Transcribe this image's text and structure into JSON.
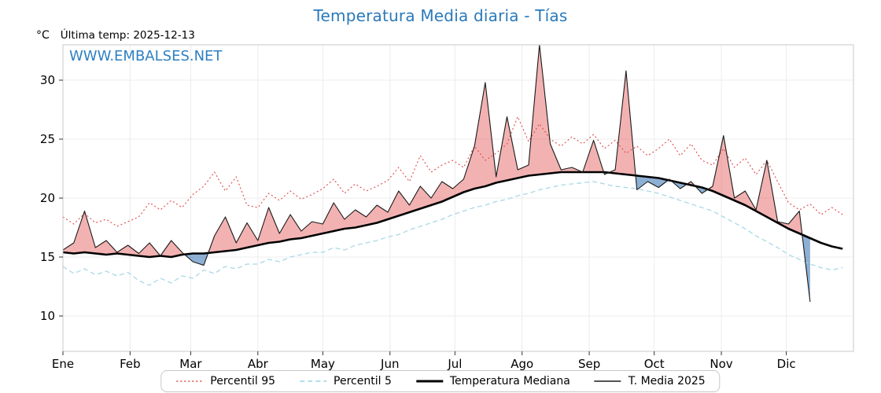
{
  "header": {
    "title": "Temperatura Media diaria - Tías",
    "unit_label": "°C",
    "last_temp_label": "Última temp: 2025-12-13",
    "watermark": "WWW.EMBALSES.NET"
  },
  "colors": {
    "title": "#2a79ba",
    "watermark": "#2e80c3",
    "axis_text": "#000000",
    "grid": "#ececec",
    "plot_border": "#c8c8c8",
    "fill_above_median": "rgba(229,85,85,0.45)",
    "fill_below_median": "rgba(93,143,194,0.70)"
  },
  "chart_data": {
    "type": "line",
    "title": "Temperatura Media diaria - Tías",
    "xlabel": "",
    "ylabel": "°C",
    "legend_position": "bottom",
    "grid": true,
    "xlim": [
      0,
      365
    ],
    "ylim": [
      7,
      33
    ],
    "yticks": [
      10,
      15,
      20,
      25,
      30
    ],
    "month_labels": [
      "Ene",
      "Feb",
      "Mar",
      "Abr",
      "May",
      "Jun",
      "Jul",
      "Ago",
      "Sep",
      "Oct",
      "Nov",
      "Dic"
    ],
    "month_start_days": [
      0,
      31,
      59,
      90,
      120,
      151,
      181,
      212,
      243,
      273,
      304,
      334
    ],
    "days": [
      0,
      5,
      10,
      15,
      20,
      25,
      30,
      35,
      40,
      45,
      50,
      55,
      60,
      65,
      70,
      75,
      80,
      85,
      90,
      95,
      100,
      105,
      110,
      115,
      120,
      125,
      130,
      135,
      140,
      145,
      150,
      155,
      160,
      165,
      170,
      175,
      180,
      185,
      190,
      195,
      200,
      205,
      210,
      215,
      220,
      225,
      230,
      235,
      240,
      245,
      250,
      255,
      260,
      265,
      270,
      275,
      280,
      285,
      290,
      295,
      300,
      305,
      310,
      315,
      320,
      325,
      330,
      335,
      340,
      345,
      350,
      355,
      360
    ],
    "series": [
      {
        "name": "Percentil 95",
        "color": "#e04848",
        "style": "dotted",
        "width": 1.1,
        "values": [
          18.4,
          17.8,
          18.7,
          17.9,
          18.2,
          17.6,
          18.0,
          18.4,
          19.6,
          19.0,
          19.8,
          19.2,
          20.3,
          21.0,
          22.2,
          20.6,
          21.8,
          19.4,
          19.2,
          20.4,
          19.8,
          20.6,
          19.9,
          20.3,
          20.8,
          21.6,
          20.4,
          21.2,
          20.6,
          21.0,
          21.5,
          22.6,
          21.4,
          23.6,
          22.2,
          22.8,
          23.2,
          22.6,
          24.4,
          23.2,
          23.8,
          24.6,
          26.9,
          24.8,
          26.3,
          25.0,
          24.4,
          25.2,
          24.6,
          25.4,
          24.2,
          24.9,
          23.8,
          24.4,
          23.6,
          24.2,
          25.0,
          23.6,
          24.6,
          23.2,
          22.8,
          24.2,
          22.6,
          23.4,
          22.0,
          23.2,
          21.4,
          19.6,
          19.0,
          19.5,
          18.6,
          19.2,
          18.6
        ]
      },
      {
        "name": "Percentil 5",
        "color": "#aad8e7",
        "style": "dashed",
        "width": 1.3,
        "values": [
          14.2,
          13.6,
          14.0,
          13.5,
          13.8,
          13.4,
          13.7,
          13.0,
          12.6,
          13.2,
          12.8,
          13.4,
          13.2,
          13.9,
          13.6,
          14.2,
          14.0,
          14.4,
          14.4,
          14.8,
          14.6,
          15.0,
          15.2,
          15.4,
          15.4,
          15.8,
          15.6,
          16.0,
          16.2,
          16.4,
          16.7,
          16.9,
          17.3,
          17.6,
          17.9,
          18.2,
          18.6,
          18.9,
          19.2,
          19.4,
          19.7,
          19.9,
          20.2,
          20.4,
          20.7,
          20.9,
          21.1,
          21.2,
          21.3,
          21.4,
          21.2,
          21.0,
          20.9,
          20.8,
          20.6,
          20.4,
          20.1,
          19.8,
          19.5,
          19.2,
          18.9,
          18.4,
          17.9,
          17.4,
          16.8,
          16.3,
          15.8,
          15.2,
          14.8,
          14.4,
          14.1,
          13.9,
          14.1
        ]
      },
      {
        "name": "Temperatura Mediana",
        "color": "#000000",
        "style": "solid",
        "width": 2.6,
        "values": [
          15.4,
          15.3,
          15.4,
          15.3,
          15.2,
          15.3,
          15.2,
          15.1,
          15.0,
          15.1,
          15.0,
          15.2,
          15.3,
          15.3,
          15.4,
          15.5,
          15.6,
          15.8,
          16.0,
          16.2,
          16.3,
          16.5,
          16.6,
          16.8,
          17.0,
          17.2,
          17.4,
          17.5,
          17.7,
          17.9,
          18.2,
          18.5,
          18.8,
          19.1,
          19.4,
          19.7,
          20.1,
          20.5,
          20.8,
          21.0,
          21.3,
          21.5,
          21.7,
          21.9,
          22.0,
          22.1,
          22.2,
          22.2,
          22.2,
          22.2,
          22.2,
          22.1,
          22.0,
          21.9,
          21.8,
          21.7,
          21.5,
          21.3,
          21.1,
          20.9,
          20.6,
          20.2,
          19.8,
          19.4,
          18.9,
          18.4,
          17.9,
          17.4,
          17.0,
          16.6,
          16.2,
          15.9,
          15.7
        ]
      },
      {
        "name": "T. Media 2025",
        "color": "#1a1a1a",
        "style": "solid",
        "width": 1.1,
        "values": [
          15.6,
          16.2,
          18.9,
          15.8,
          16.4,
          15.4,
          16.0,
          15.3,
          16.2,
          15.1,
          16.4,
          15.4,
          14.6,
          14.3,
          16.8,
          18.4,
          16.2,
          17.9,
          16.4,
          19.2,
          17.0,
          18.6,
          17.2,
          18.0,
          17.8,
          19.6,
          18.2,
          19.0,
          18.4,
          19.4,
          18.8,
          20.6,
          19.4,
          21.0,
          20.0,
          21.4,
          20.8,
          21.6,
          24.4,
          29.8,
          21.8,
          26.9,
          22.4,
          22.8,
          33.0,
          24.6,
          22.4,
          22.6,
          22.2,
          24.9,
          22.0,
          22.4,
          30.8,
          20.7,
          21.4,
          20.9,
          21.6,
          20.8,
          21.4,
          20.4,
          21.0,
          25.3,
          20.0,
          20.6,
          19.0,
          23.2,
          18.0,
          17.8,
          18.9,
          11.2,
          null,
          null,
          null
        ]
      }
    ],
    "fill_between": {
      "upper": "T. Media 2025",
      "lower": "Temperatura Mediana",
      "positive_color": "rgba(229,85,85,0.45)",
      "negative_color": "rgba(93,143,194,0.70)"
    }
  }
}
